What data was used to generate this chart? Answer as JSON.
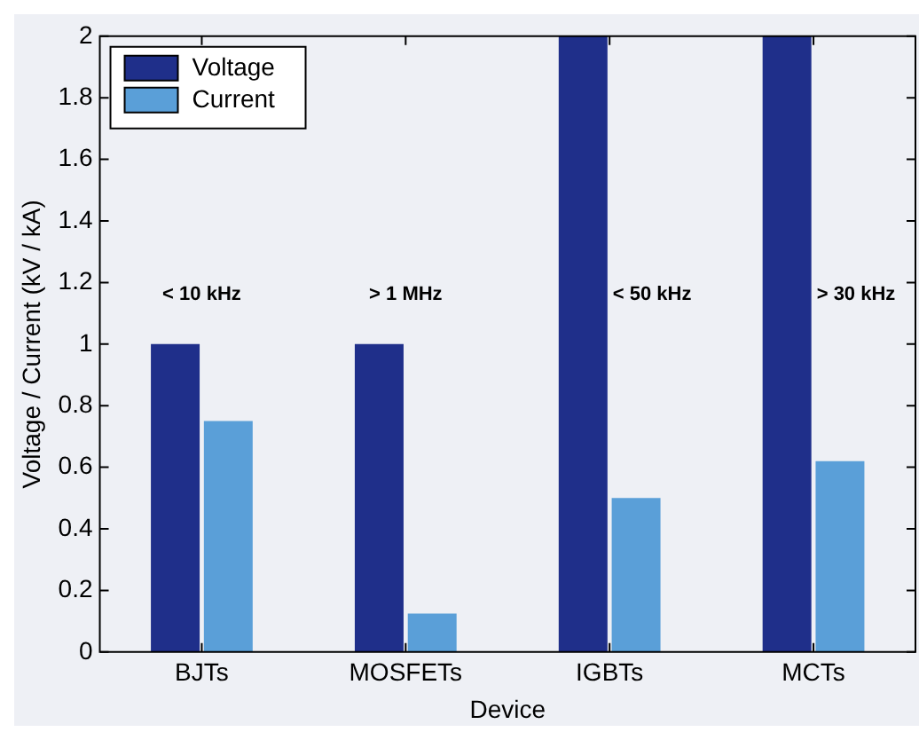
{
  "chart_data": {
    "type": "bar",
    "xlabel": "Device",
    "ylabel": "Voltage / Current (kV / kA)",
    "categories": [
      "BJTs",
      "MOSFETs",
      "IGBTs",
      "MCTs"
    ],
    "series": [
      {
        "name": "Voltage",
        "color": "#1f2f8a",
        "values": [
          1,
          1,
          2,
          2
        ]
      },
      {
        "name": "Current",
        "color": "#5a9fd8",
        "values": [
          0.75,
          0.125,
          0.5,
          0.62
        ]
      }
    ],
    "ylim": [
      0,
      2
    ],
    "yticks": [
      0,
      0.2,
      0.4,
      0.6,
      0.8,
      1,
      1.2,
      1.4,
      1.6,
      1.8,
      2
    ],
    "grid": false,
    "legend": "top left",
    "annotations": [
      "< 10 kHz",
      "> 1 MHz",
      "< 50 kHz",
      "> 30 kHz"
    ]
  }
}
